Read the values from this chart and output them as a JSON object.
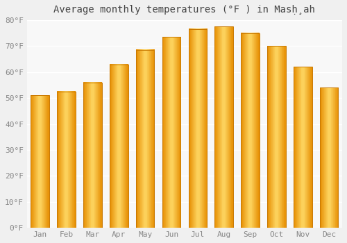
{
  "months": [
    "Jan",
    "Feb",
    "Mar",
    "Apr",
    "May",
    "Jun",
    "Jul",
    "Aug",
    "Sep",
    "Oct",
    "Nov",
    "Dec"
  ],
  "values": [
    51,
    52.5,
    56,
    63,
    68.5,
    73.5,
    76.5,
    77.5,
    75,
    70,
    62,
    54
  ],
  "bar_color_main": "#FDB827",
  "bar_color_light": "#FFD966",
  "bar_color_dark": "#E8940A",
  "bar_edge_color": "#C87800",
  "title": "Average monthly temperatures (°F ) in Masḩ̣ah",
  "ylim": [
    0,
    80
  ],
  "yticks": [
    0,
    10,
    20,
    30,
    40,
    50,
    60,
    70,
    80
  ],
  "ytick_labels": [
    "0°F",
    "10°F",
    "20°F",
    "30°F",
    "40°F",
    "50°F",
    "60°F",
    "70°F",
    "80°F"
  ],
  "background_color": "#f0f0f0",
  "plot_background": "#f8f8f8",
  "grid_color": "#ffffff",
  "title_fontsize": 10,
  "tick_fontsize": 8,
  "bar_width": 0.7
}
